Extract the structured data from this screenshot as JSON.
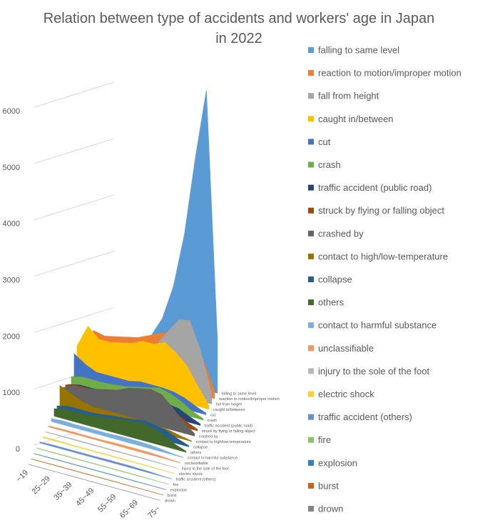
{
  "chart_data": {
    "type": "area3d",
    "title": "Relation between type of accidents and workers' age in Japan in 2022",
    "categories": [
      "~19",
      null,
      "25~29",
      null,
      "35~39",
      null,
      "45~49",
      null,
      "55~59",
      null,
      "65~69",
      null,
      "75~"
    ],
    "ylim": [
      0,
      6000
    ],
    "yticks": [
      0,
      1000,
      2000,
      3000,
      4000,
      5000,
      6000
    ],
    "grid": true,
    "legend": "right",
    "series": [
      {
        "name": "falling to same level",
        "color": "#5b9bd5",
        "values": [
          150,
          200,
          250,
          300,
          400,
          550,
          800,
          1200,
          1900,
          3000,
          4600,
          6000,
          1100
        ]
      },
      {
        "name": "reaction to motion/improper motion",
        "color": "#ed7d31",
        "values": [
          300,
          700,
          650,
          700,
          750,
          800,
          900,
          1000,
          1100,
          1150,
          1050,
          700,
          150
        ]
      },
      {
        "name": "fall from height",
        "color": "#a5a5a5",
        "values": [
          150,
          250,
          300,
          350,
          450,
          550,
          700,
          900,
          1200,
          1500,
          1550,
          1000,
          200
        ]
      },
      {
        "name": "caught in/between",
        "color": "#ffc000",
        "values": [
          550,
          1000,
          800,
          800,
          850,
          900,
          1000,
          1000,
          1100,
          950,
          750,
          400,
          80
        ]
      },
      {
        "name": "cut",
        "color": "#4472c4",
        "values": [
          500,
          350,
          250,
          250,
          250,
          250,
          300,
          300,
          300,
          280,
          220,
          120,
          30
        ]
      },
      {
        "name": "crash",
        "color": "#70ad47",
        "values": [
          150,
          200,
          200,
          200,
          220,
          250,
          300,
          350,
          400,
          350,
          250,
          120,
          30
        ]
      },
      {
        "name": "traffic accident (public road)",
        "color": "#264478",
        "values": [
          100,
          150,
          150,
          150,
          160,
          170,
          200,
          220,
          250,
          250,
          220,
          120,
          30
        ]
      },
      {
        "name": "struck by flying or falling object",
        "color": "#9e480e",
        "values": [
          200,
          250,
          250,
          250,
          280,
          300,
          330,
          350,
          380,
          350,
          250,
          120,
          30
        ]
      },
      {
        "name": "crashed by",
        "color": "#636363",
        "values": [
          250,
          350,
          350,
          400,
          450,
          500,
          600,
          650,
          700,
          650,
          450,
          220,
          50
        ]
      },
      {
        "name": "contact to high/low-temperature",
        "color": "#997300",
        "values": [
          400,
          300,
          200,
          150,
          150,
          150,
          150,
          150,
          150,
          130,
          100,
          50,
          10
        ]
      },
      {
        "name": "collapse",
        "color": "#255e91",
        "values": [
          100,
          150,
          150,
          150,
          170,
          200,
          220,
          250,
          280,
          250,
          200,
          100,
          20
        ]
      },
      {
        "name": "others",
        "color": "#43682b",
        "values": [
          150,
          200,
          200,
          200,
          230,
          260,
          300,
          320,
          350,
          300,
          220,
          100,
          20
        ]
      },
      {
        "name": "contact to harmful substance",
        "color": "#7cafdd",
        "values": [
          60,
          80,
          70,
          70,
          70,
          70,
          80,
          80,
          80,
          70,
          50,
          20,
          5
        ]
      },
      {
        "name": "unclassifiable",
        "color": "#f1975a",
        "values": [
          20,
          30,
          30,
          30,
          30,
          30,
          40,
          40,
          40,
          40,
          30,
          15,
          5
        ]
      },
      {
        "name": "injury to the sole of the foot",
        "color": "#b7b7b7",
        "values": [
          10,
          15,
          15,
          15,
          15,
          15,
          15,
          15,
          15,
          15,
          10,
          5,
          2
        ]
      },
      {
        "name": "electric shock",
        "color": "#ffcd33",
        "values": [
          15,
          20,
          15,
          12,
          12,
          12,
          12,
          12,
          10,
          10,
          8,
          4,
          1
        ]
      },
      {
        "name": "traffic accident (others)",
        "color": "#698ed0",
        "values": [
          20,
          30,
          30,
          30,
          30,
          30,
          35,
          35,
          35,
          30,
          25,
          10,
          2
        ]
      },
      {
        "name": "fire",
        "color": "#8cc168",
        "values": [
          5,
          8,
          8,
          8,
          8,
          8,
          8,
          8,
          8,
          8,
          6,
          3,
          1
        ]
      },
      {
        "name": "explosion",
        "color": "#327dc2",
        "values": [
          3,
          5,
          5,
          5,
          5,
          5,
          5,
          5,
          5,
          5,
          4,
          2,
          1
        ]
      },
      {
        "name": "burst",
        "color": "#d26012",
        "values": [
          3,
          5,
          5,
          5,
          5,
          5,
          5,
          5,
          5,
          5,
          4,
          2,
          1
        ]
      },
      {
        "name": "drown",
        "color": "#848484",
        "values": [
          1,
          2,
          2,
          2,
          2,
          2,
          2,
          2,
          2,
          2,
          2,
          1,
          0
        ]
      }
    ]
  }
}
